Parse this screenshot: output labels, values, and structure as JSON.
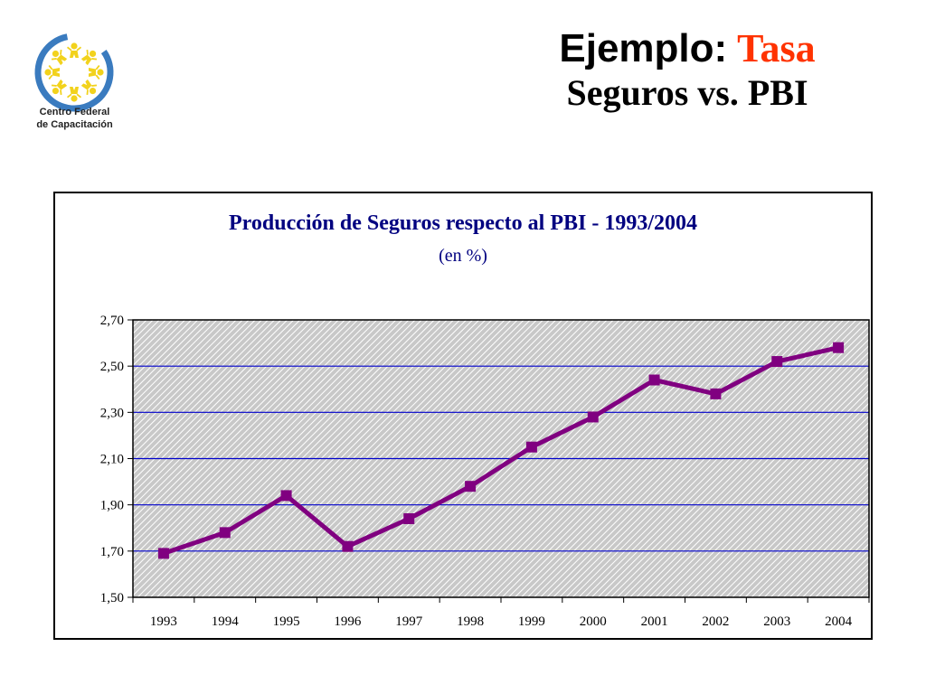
{
  "logo": {
    "line1": "Centro Federal",
    "line2": "de Capacitación",
    "colors": {
      "ring": "#3a7bbf",
      "figures": "#f2d21c"
    }
  },
  "slide_title": {
    "label": "Ejemplo:",
    "accent": "Tasa",
    "subtitle": "Seguros vs. PBI"
  },
  "colors": {
    "accent": "#ff3300",
    "chart_title": "#000080",
    "series": "#800080",
    "gridline": "#0000cc"
  },
  "chart_data": {
    "type": "line",
    "title": "Producción de Seguros respecto al PBI - 1993/2004",
    "subtitle": "(en %)",
    "xlabel": "",
    "ylabel": "",
    "categories": [
      "1993",
      "1994",
      "1995",
      "1996",
      "1997",
      "1998",
      "1999",
      "2000",
      "2001",
      "2002",
      "2003",
      "2004"
    ],
    "series": [
      {
        "values": [
          1.69,
          1.78,
          1.94,
          1.72,
          1.84,
          1.98,
          2.15,
          2.28,
          2.44,
          2.38,
          2.52,
          2.58
        ]
      }
    ],
    "ylim": [
      1.5,
      2.7
    ],
    "yticks": [
      1.5,
      1.7,
      1.9,
      2.1,
      2.3,
      2.5,
      2.7
    ],
    "ytick_labels": [
      "1,50",
      "1,70",
      "1,90",
      "2,10",
      "2,30",
      "2,50",
      "2,70"
    ],
    "grid": true,
    "legend": "none"
  }
}
